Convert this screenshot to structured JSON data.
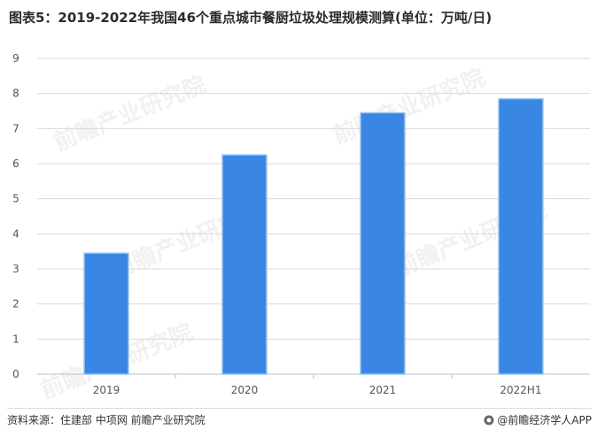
{
  "title": "图表5：2019-2022年我国46个重点城市餐厨垃圾处理规模测算(单位：万吨/日)",
  "source": "资料来源：住建部 中项网 前瞻产业研究院",
  "brand": "@前瞻经济学人APP",
  "watermark_text": "前瞻产业研究院",
  "colors": {
    "bar": "#3a86e4",
    "bar_edge": "#9cc3f0",
    "grid": "#d9d9d9",
    "axis": "#bfbfbf"
  },
  "chart_data": {
    "type": "bar",
    "categories": [
      "2019",
      "2020",
      "2021",
      "2022H1"
    ],
    "values": [
      3.45,
      6.25,
      7.45,
      7.85
    ],
    "title": "图表5：2019-2022年我国46个重点城市餐厨垃圾处理规模测算(单位：万吨/日)",
    "xlabel": "",
    "ylabel": "",
    "ylim": [
      0,
      9
    ],
    "yticks": [
      0,
      1,
      2,
      3,
      4,
      5,
      6,
      7,
      8,
      9
    ],
    "grid": true,
    "legend": "none"
  }
}
